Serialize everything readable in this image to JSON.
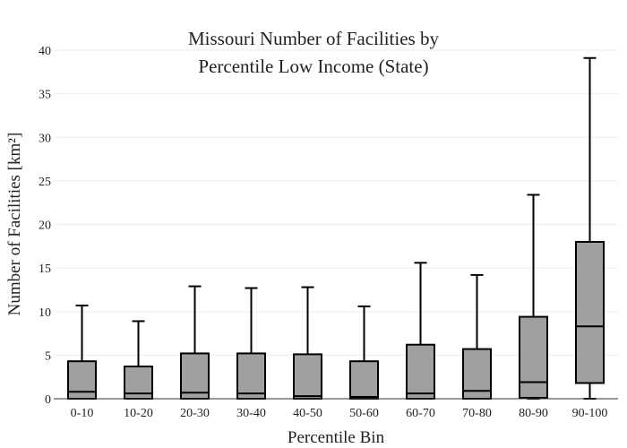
{
  "chart_data": {
    "type": "box",
    "title_lines": [
      "Missouri Number of Facilities by",
      "Percentile Low Income (State)"
    ],
    "xlabel": "Percentile Bin",
    "ylabel": "Number of Facilities  [km²]",
    "ylim": [
      0,
      40
    ],
    "yticks": [
      0,
      5,
      10,
      15,
      20,
      25,
      30,
      35,
      40
    ],
    "grid": true,
    "categories": [
      "0-10",
      "10-20",
      "20-30",
      "30-40",
      "40-50",
      "50-60",
      "60-70",
      "70-80",
      "80-90",
      "90-100"
    ],
    "boxes": [
      {
        "min": 0,
        "q1": 0,
        "median": 0.8,
        "q3": 4.3,
        "max": 10.7
      },
      {
        "min": 0,
        "q1": 0,
        "median": 0.6,
        "q3": 3.7,
        "max": 8.9
      },
      {
        "min": 0,
        "q1": 0,
        "median": 0.7,
        "q3": 5.2,
        "max": 12.9
      },
      {
        "min": 0,
        "q1": 0,
        "median": 0.6,
        "q3": 5.2,
        "max": 12.7
      },
      {
        "min": 0,
        "q1": 0,
        "median": 0.3,
        "q3": 5.1,
        "max": 12.8
      },
      {
        "min": 0,
        "q1": 0,
        "median": 0.2,
        "q3": 4.3,
        "max": 10.6
      },
      {
        "min": 0,
        "q1": 0,
        "median": 0.6,
        "q3": 6.2,
        "max": 15.6
      },
      {
        "min": 0,
        "q1": 0,
        "median": 0.9,
        "q3": 5.7,
        "max": 14.2
      },
      {
        "min": 0,
        "q1": 0.1,
        "median": 1.9,
        "q3": 9.4,
        "max": 23.4
      },
      {
        "min": 0,
        "q1": 1.8,
        "median": 8.3,
        "q3": 18.0,
        "max": 39.1
      }
    ],
    "box_color": "#a0a0a0",
    "line_color": "#000000"
  }
}
